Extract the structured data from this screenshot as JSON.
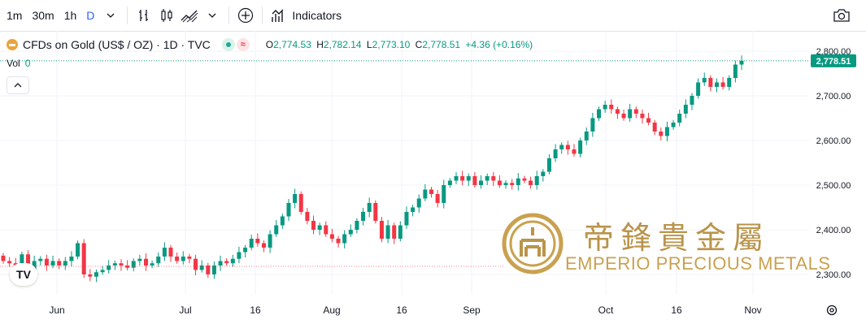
{
  "toolbar": {
    "intervals": [
      "1m",
      "30m",
      "1h",
      "D"
    ],
    "active_interval": "D",
    "indicators_label": "Indicators",
    "icons": [
      "chevron-down-icon",
      "bar-chart-icon",
      "candles-icon",
      "area-chart-icon",
      "chevron-down-icon",
      "plus-circle-icon",
      "indicators-icon",
      "camera-icon"
    ]
  },
  "legend": {
    "symbol": "CFDs on Gold (US$ / OZ) · 1D · TVC",
    "open_label": "O",
    "open": "2,774.53",
    "high_label": "H",
    "high": "2,782.14",
    "low_label": "L",
    "low": "2,773.10",
    "close_label": "C",
    "close": "2,778.51",
    "change": "+4.36 (+0.16%)"
  },
  "volume": {
    "label": "Vol",
    "value": "0"
  },
  "price_axis": {
    "labels": [
      "2,800.00",
      "2,700.00",
      "2,600.00",
      "2,500.00",
      "2,400.00",
      "2,300.00"
    ],
    "current": "2,778.51"
  },
  "time_axis": {
    "labels": [
      "Jun",
      "Jul",
      "16",
      "Aug",
      "16",
      "Sep",
      "Oct",
      "16",
      "Nov"
    ]
  },
  "watermark": {
    "chinese": "帝鋒貴金屬",
    "english": "EMPERIO PRECIOUS METALS"
  },
  "logo": {
    "text": "TV"
  },
  "colors": {
    "up": "#089981",
    "down": "#f23645",
    "current_line": "#089981",
    "watermark_gold": "#c9a14f"
  },
  "chart_data": {
    "type": "candlestick",
    "symbol": "CFDs on Gold (US$ / OZ)",
    "interval": "1D",
    "ylim": [
      2270,
      2818
    ],
    "x_ticks": [
      "Jun",
      "Jul",
      "16",
      "Aug",
      "16",
      "Sep",
      "Oct",
      "16",
      "Nov"
    ],
    "closes": [
      2330,
      2325,
      2310,
      2345,
      2300,
      2330,
      2335,
      2320,
      2330,
      2320,
      2330,
      2340,
      2370,
      2300,
      2295,
      2305,
      2310,
      2320,
      2325,
      2320,
      2315,
      2330,
      2335,
      2320,
      2325,
      2340,
      2360,
      2340,
      2330,
      2340,
      2335,
      2310,
      2320,
      2300,
      2320,
      2330,
      2325,
      2335,
      2350,
      2360,
      2380,
      2370,
      2360,
      2390,
      2410,
      2430,
      2460,
      2480,
      2440,
      2420,
      2400,
      2410,
      2390,
      2380,
      2370,
      2390,
      2400,
      2420,
      2440,
      2460,
      2420,
      2380,
      2410,
      2380,
      2410,
      2440,
      2450,
      2470,
      2490,
      2480,
      2460,
      2500,
      2510,
      2520,
      2510,
      2520,
      2500,
      2510,
      2520,
      2510,
      2500,
      2505,
      2500,
      2515,
      2510,
      2500,
      2520,
      2530,
      2560,
      2580,
      2590,
      2580,
      2570,
      2600,
      2620,
      2650,
      2670,
      2680,
      2670,
      2660,
      2650,
      2670,
      2660,
      2650,
      2640,
      2620,
      2610,
      2630,
      2640,
      2660,
      2680,
      2700,
      2730,
      2740,
      2720,
      2730,
      2720,
      2740,
      2770,
      2778.51
    ]
  }
}
